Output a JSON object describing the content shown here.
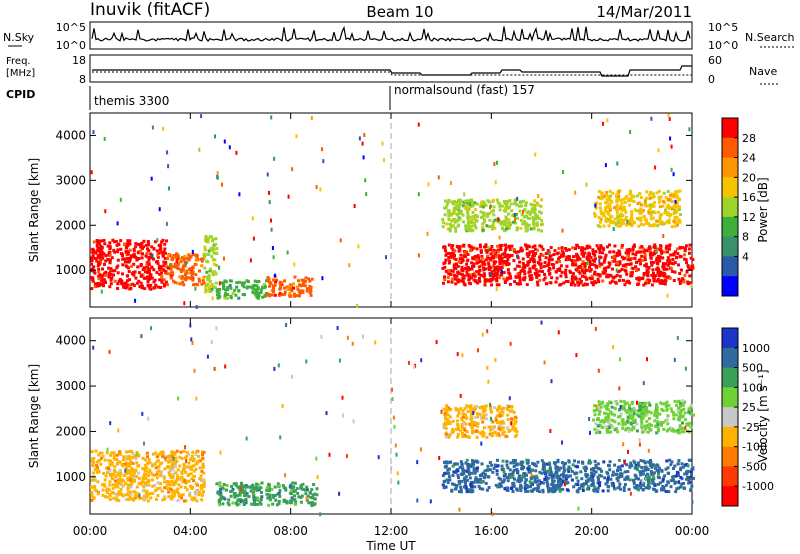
{
  "header": {
    "station": "Inuvik (fitACF)",
    "beam": "Beam 10",
    "date": "14/Mar/2011"
  },
  "panels": {
    "nsky": {
      "label": "N.Sky",
      "tick_top": "10^5",
      "tick_bottom": "10^0",
      "right_label": "N.Search",
      "right_tick_top": "10^5",
      "right_tick_bottom": "10^0"
    },
    "freq": {
      "label_line1": "Freq.",
      "label_line2": "[MHz]",
      "tick_top": "18",
      "tick_bottom": "8",
      "right_label": "Nave",
      "right_tick_top": "60",
      "right_tick_bottom": "0"
    },
    "cpid": {
      "label": "CPID",
      "program_1": "themis 3300",
      "program_2": "normalsound (fast) 157"
    }
  },
  "power_colorbar": {
    "title": "Power [dB]",
    "ticks": [
      "28",
      "24",
      "20",
      "16",
      "12",
      "8",
      "4"
    ],
    "colors": [
      "#ff0000",
      "#ff5a00",
      "#ff9500",
      "#f5c400",
      "#9ed42a",
      "#3fae3a",
      "#3a9068",
      "#2a5aa8",
      "#0000ff"
    ]
  },
  "velocity_colorbar": {
    "title": "Velocity [m s⁻¹]",
    "ticks": [
      "1000",
      "500",
      "100",
      "25",
      "-25",
      "-100",
      "-500",
      "-1000"
    ],
    "colors": [
      "#1a35c8",
      "#2f6aa0",
      "#38a058",
      "#6ed236",
      "#c8c8c8",
      "#ffb300",
      "#ff7a00",
      "#ff3a00",
      "#ff0000"
    ]
  },
  "chart_data": {
    "type": "heatmap",
    "title": "Inuvik (fitACF) Beam 10 14/Mar/2011",
    "xlabel": "Time UT",
    "ylabel": "Slant Range [km]",
    "x_ticks": [
      "00:00",
      "04:00",
      "08:00",
      "12:00",
      "16:00",
      "20:00",
      "00:00"
    ],
    "x_range_hours": [
      0,
      24
    ],
    "y_ticks": [
      1000,
      2000,
      3000,
      4000
    ],
    "y_range_km": [
      180,
      4500
    ],
    "mode_change_time": "12:00",
    "power_regions": [
      {
        "t": [
          0.0,
          3.0
        ],
        "range_km": [
          600,
          1700
        ],
        "level": "28"
      },
      {
        "t": [
          3.0,
          4.5
        ],
        "range_km": [
          700,
          1400
        ],
        "level": "24"
      },
      {
        "t": [
          4.5,
          5.0
        ],
        "range_km": [
          500,
          1800
        ],
        "level": "12"
      },
      {
        "t": [
          5.0,
          7.0
        ],
        "range_km": [
          400,
          800
        ],
        "level": "8"
      },
      {
        "t": [
          7.0,
          8.8
        ],
        "range_km": [
          450,
          900
        ],
        "level": "24"
      },
      {
        "t": [
          14.0,
          24.0
        ],
        "range_km": [
          700,
          1600
        ],
        "level": "28"
      },
      {
        "t": [
          14.0,
          18.0
        ],
        "range_km": [
          1900,
          2600
        ],
        "level": "12"
      },
      {
        "t": [
          20.0,
          23.5
        ],
        "range_km": [
          2000,
          2800
        ],
        "level": "16"
      }
    ],
    "velocity_regions": [
      {
        "t": [
          0.0,
          4.5
        ],
        "range_km": [
          500,
          1600
        ],
        "level": "-100"
      },
      {
        "t": [
          5.0,
          9.0
        ],
        "range_km": [
          400,
          900
        ],
        "level": "100"
      },
      {
        "t": [
          14.0,
          17.0
        ],
        "range_km": [
          1900,
          2600
        ],
        "level": "-100"
      },
      {
        "t": [
          14.0,
          24.0
        ],
        "range_km": [
          700,
          1400
        ],
        "level": "500"
      },
      {
        "t": [
          20.0,
          24.0
        ],
        "range_km": [
          2000,
          2700
        ],
        "level": "25"
      }
    ]
  }
}
